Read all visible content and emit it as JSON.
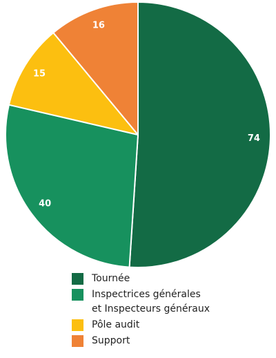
{
  "chart_data": {
    "type": "pie",
    "title": "",
    "slices": [
      {
        "label": "Tournée",
        "value": 74,
        "color": "#136b45"
      },
      {
        "label": "Inspectrices générales et Inspecteurs généraux",
        "label_lines": [
          "Inspectrices générales",
          "et Inspecteurs généraux"
        ],
        "value": 40,
        "color": "#17915e"
      },
      {
        "label": "Pôle audit",
        "value": 15,
        "color": "#fcbf10"
      },
      {
        "label": "Support",
        "value": 16,
        "color": "#ef8236"
      }
    ],
    "start_angle": "12 o'clock",
    "direction": "clockwise",
    "legend_position": "bottom-center"
  }
}
